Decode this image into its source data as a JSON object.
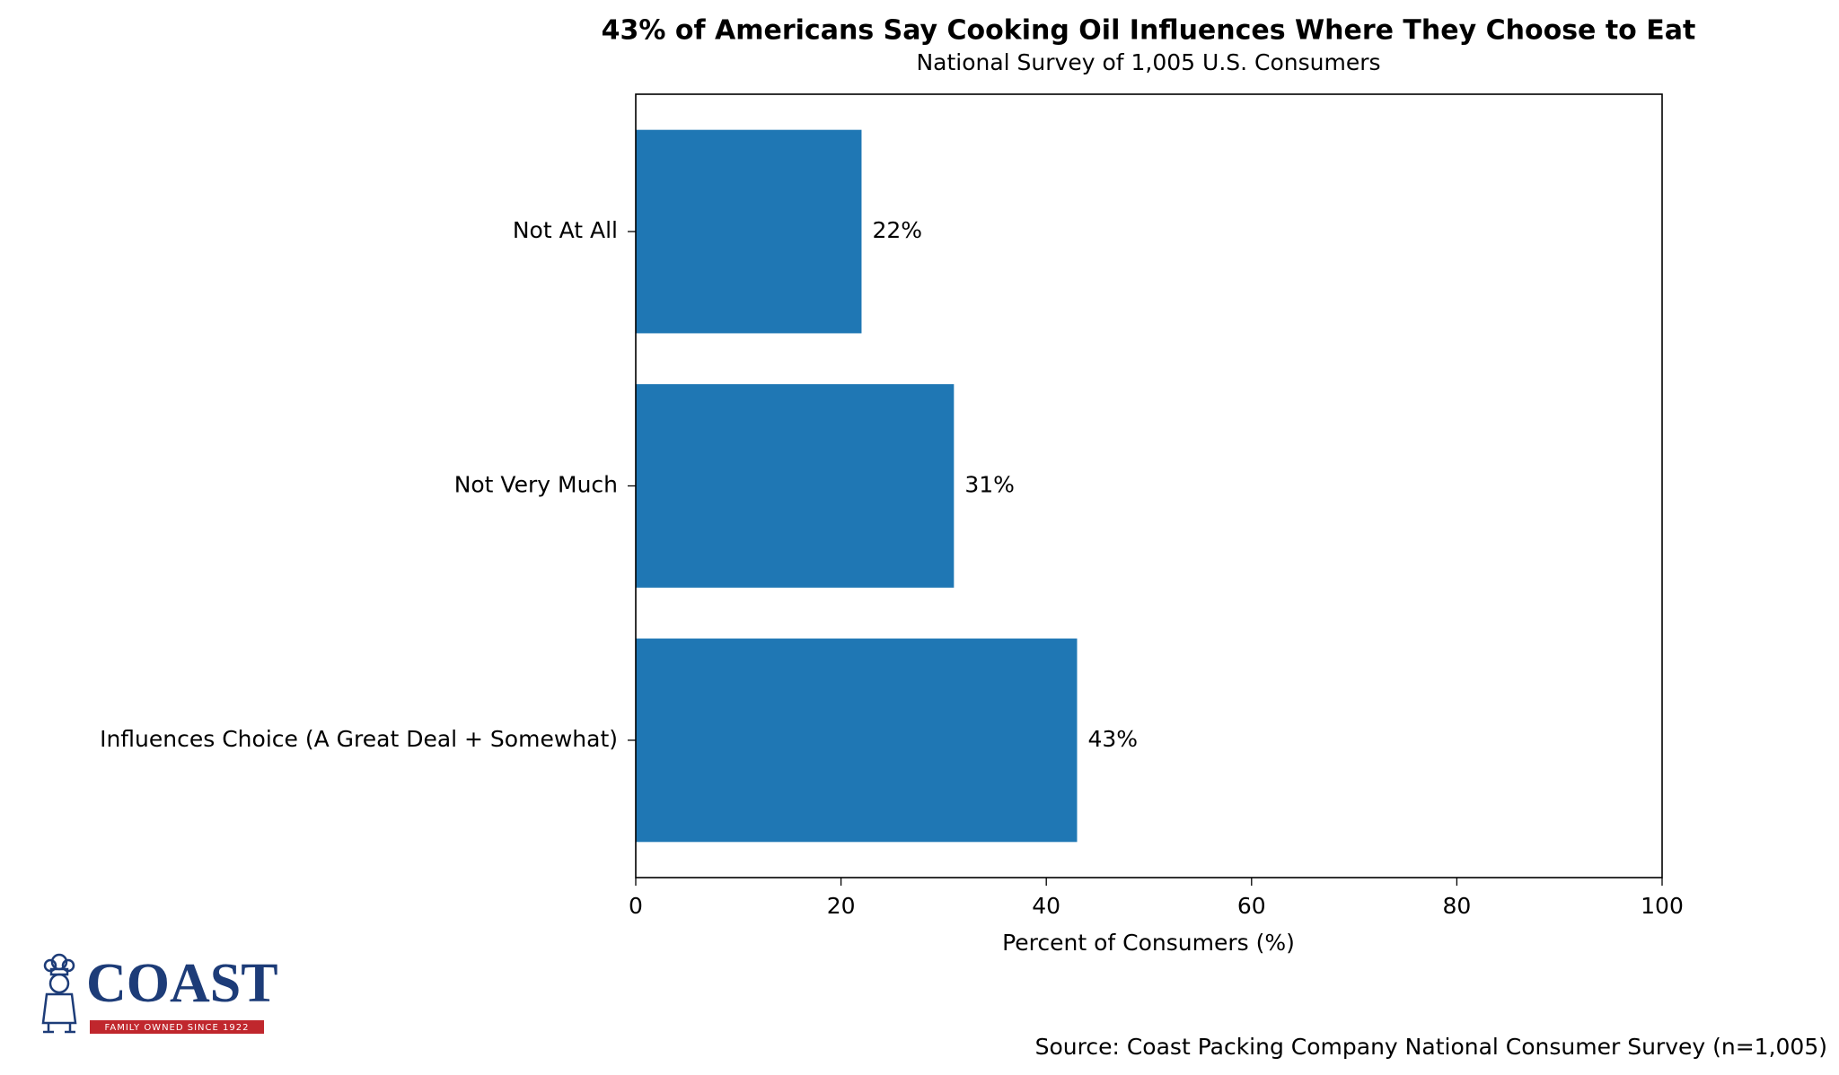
{
  "chart_data": {
    "type": "barh",
    "title": "43% of Americans Say Cooking Oil Influences Where They Choose to Eat",
    "subtitle": "National Survey of 1,005 U.S. Consumers",
    "x_label": "Percent of Consumers (%)",
    "categories": [
      "Influences Choice (A Great Deal + Somewhat)",
      "Not Very Much",
      "Not At All"
    ],
    "values": [
      43,
      31,
      22
    ],
    "value_labels": [
      "43%",
      "31%",
      "22%"
    ],
    "color": "#1f77b4",
    "xlim": [
      0,
      100
    ],
    "xticks": [
      0,
      20,
      40,
      60,
      80,
      100
    ],
    "grid": false,
    "source": "Source: Coast Packing Company National Consumer Survey (n=1,005)"
  },
  "logo": {
    "name": "COAST",
    "tagline": "FAMILY OWNED SINCE 1922"
  }
}
